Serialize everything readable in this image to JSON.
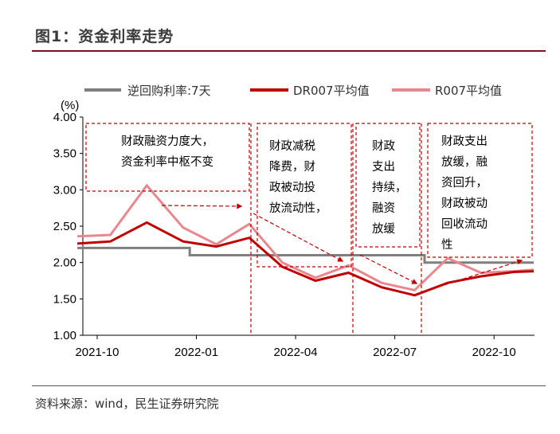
{
  "figure": {
    "title": "图1：资金利率走势",
    "source": "资料来源：wind，民生证券研究院"
  },
  "chart_data": {
    "type": "line",
    "title": "图1：资金利率走势",
    "ylabel": "(%)",
    "ylim": [
      1.0,
      4.0
    ],
    "yticks": [
      "4.00",
      "3.50",
      "3.00",
      "2.50",
      "2.00",
      "1.50",
      "1.00"
    ],
    "xticks": [
      "2021-10",
      "2022-01",
      "2022-04",
      "2022-07",
      "2022-10"
    ],
    "x_range": [
      0,
      13.2
    ],
    "x_tick_positions": [
      0,
      3,
      6,
      9,
      12
    ],
    "series": [
      {
        "name": "逆回购利率:7天",
        "color": "#7f7f7f",
        "points": [
          [
            -0.6,
            2.2
          ],
          [
            2.8,
            2.2
          ],
          [
            2.8,
            2.1
          ],
          [
            9.9,
            2.1
          ],
          [
            9.9,
            2.0
          ],
          [
            13.2,
            2.0
          ]
        ]
      },
      {
        "name": "DR007平均值",
        "color": "#c00000",
        "points": [
          [
            -0.6,
            2.26
          ],
          [
            0.4,
            2.29
          ],
          [
            1.5,
            2.55
          ],
          [
            2.6,
            2.29
          ],
          [
            3.6,
            2.22
          ],
          [
            4.6,
            2.34
          ],
          [
            5.6,
            1.94
          ],
          [
            6.6,
            1.75
          ],
          [
            7.6,
            1.86
          ],
          [
            8.6,
            1.66
          ],
          [
            9.6,
            1.55
          ],
          [
            10.6,
            1.72
          ],
          [
            11.6,
            1.81
          ],
          [
            12.6,
            1.87
          ],
          [
            13.2,
            1.88
          ]
        ]
      },
      {
        "name": "R007平均值",
        "color": "#e8888e",
        "points": [
          [
            -0.6,
            2.36
          ],
          [
            0.4,
            2.38
          ],
          [
            1.5,
            3.06
          ],
          [
            2.6,
            2.48
          ],
          [
            3.6,
            2.25
          ],
          [
            4.6,
            2.53
          ],
          [
            5.6,
            2.0
          ],
          [
            6.6,
            1.79
          ],
          [
            7.6,
            1.96
          ],
          [
            8.6,
            1.72
          ],
          [
            9.6,
            1.62
          ],
          [
            10.6,
            2.06
          ],
          [
            11.6,
            1.86
          ],
          [
            12.6,
            1.88
          ],
          [
            13.2,
            1.9
          ]
        ]
      }
    ],
    "annotations": [
      {
        "name": "annotation-1",
        "lines": [
          "财政融资力度大，",
          "资金利率中枢不变"
        ]
      },
      {
        "name": "annotation-2",
        "lines": [
          "财政减税",
          "降费，财",
          "政被动投",
          "放流动性，"
        ]
      },
      {
        "name": "annotation-3",
        "lines": [
          "财政",
          "支出",
          "持续，",
          "融资",
          "放缓"
        ]
      },
      {
        "name": "annotation-4",
        "lines": [
          "财政支出",
          "放缓，融",
          "资回升，",
          "财政被动",
          "回收流动",
          "性"
        ]
      }
    ]
  }
}
